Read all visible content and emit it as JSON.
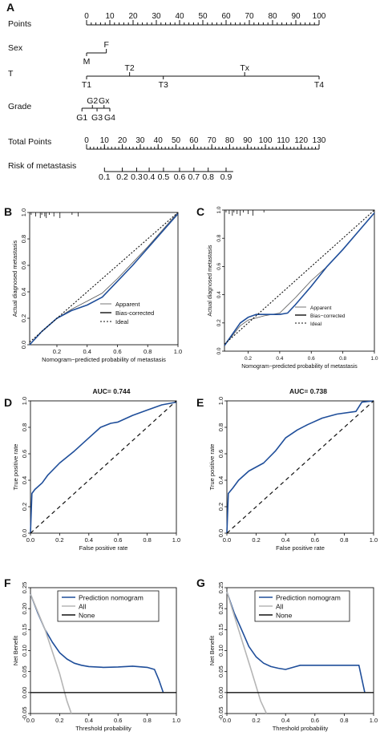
{
  "nomogram": {
    "panel_letter": "A",
    "rows": [
      {
        "id": "points",
        "label": "Points",
        "type": "axis",
        "ticks": [
          0,
          10,
          20,
          30,
          40,
          50,
          60,
          70,
          80,
          90,
          100
        ],
        "minor_step": 2
      },
      {
        "id": "sex",
        "label": "Sex",
        "type": "categories",
        "items": [
          {
            "name": "M",
            "value": 0,
            "side": "below"
          },
          {
            "name": "F",
            "value": 8.5,
            "side": "above"
          }
        ]
      },
      {
        "id": "t",
        "label": "T",
        "type": "categories",
        "items": [
          {
            "name": "T1",
            "value": 0,
            "side": "below"
          },
          {
            "name": "T2",
            "value": 18.5,
            "side": "above"
          },
          {
            "name": "T3",
            "value": 33,
            "side": "below"
          },
          {
            "name": "Tx",
            "value": 68,
            "side": "above"
          },
          {
            "name": "T4",
            "value": 100,
            "side": "below"
          }
        ]
      },
      {
        "id": "grade",
        "label": "Grade",
        "type": "grade",
        "above": [
          {
            "name": "G2",
            "value": 2.5
          },
          {
            "name": "Gx",
            "value": 7.5
          }
        ],
        "below": [
          {
            "name": "G1",
            "value": -2
          },
          {
            "name": "G3",
            "value": 4.5
          },
          {
            "name": "G4",
            "value": 10
          }
        ]
      },
      {
        "id": "total_points",
        "label": "Total Points",
        "type": "axis",
        "ticks": [
          0,
          10,
          20,
          30,
          40,
          50,
          60,
          70,
          80,
          90,
          100,
          110,
          120,
          130
        ],
        "minor_step": 2
      },
      {
        "id": "risk",
        "label": "Risk of metastasis",
        "type": "risk",
        "ticks": [
          {
            "label": "0.1",
            "total": 10
          },
          {
            "label": "0.2",
            "total": 20
          },
          {
            "label": "0.3",
            "total": 28
          },
          {
            "label": "0.4",
            "total": 35
          },
          {
            "label": "0.5",
            "total": 43
          },
          {
            "label": "0.6",
            "total": 52
          },
          {
            "label": "0.7",
            "total": 60
          },
          {
            "label": "0.8",
            "total": 68
          },
          {
            "label": "0.9",
            "total": 78
          }
        ],
        "extent": [
          10,
          82
        ]
      }
    ]
  },
  "chart_data": [
    {
      "panel": "B",
      "type": "line",
      "xlabel": "Nomogram−predicted probability of metastasis",
      "ylabel": "Actual diagnosed metastasis",
      "xlim": [
        0.02,
        1.0
      ],
      "ylim": [
        0.0,
        1.0
      ],
      "xticks": [
        "0.2",
        "0.4",
        "0.6",
        "0.8",
        "1.0"
      ],
      "xtick_values": [
        0.2,
        0.4,
        0.6,
        0.8,
        1.0
      ],
      "yticks": [
        "0.0",
        "0.2",
        "0.4",
        "0.6",
        "0.8",
        "1.0"
      ],
      "ytick_values": [
        0,
        0.2,
        0.4,
        0.6,
        0.8,
        1.0
      ],
      "legend": [
        "Apparent",
        "Bias-corrected",
        "Ideal"
      ],
      "legend_position": "bottom-right",
      "rug": [
        0.03,
        0.06,
        0.09,
        0.1,
        0.12,
        0.13,
        0.15,
        0.18,
        0.22,
        0.3,
        0.34
      ],
      "series": [
        {
          "name": "Apparent",
          "style": "thin-solid",
          "points": [
            [
              0.02,
              0.0
            ],
            [
              0.1,
              0.1
            ],
            [
              0.2,
              0.2
            ],
            [
              0.3,
              0.27
            ],
            [
              0.4,
              0.33
            ],
            [
              0.5,
              0.39
            ],
            [
              0.6,
              0.5
            ],
            [
              0.7,
              0.62
            ],
            [
              0.8,
              0.74
            ],
            [
              0.9,
              0.87
            ],
            [
              1.0,
              1.0
            ]
          ]
        },
        {
          "name": "Bias-corrected",
          "style": "thick-solid",
          "points": [
            [
              0.02,
              0.0
            ],
            [
              0.1,
              0.1
            ],
            [
              0.2,
              0.2
            ],
            [
              0.3,
              0.26
            ],
            [
              0.4,
              0.3
            ],
            [
              0.5,
              0.36
            ],
            [
              0.6,
              0.48
            ],
            [
              0.7,
              0.6
            ],
            [
              0.8,
              0.73
            ],
            [
              0.9,
              0.86
            ],
            [
              1.0,
              0.99
            ]
          ]
        },
        {
          "name": "Ideal",
          "style": "dotted",
          "points": [
            [
              0.02,
              0.02
            ],
            [
              1.0,
              1.0
            ]
          ]
        }
      ]
    },
    {
      "panel": "C",
      "type": "line",
      "xlabel": "Nomogram−predicted probability of metastasis",
      "ylabel": "Actual diagnosed metastasis",
      "xlim": [
        0.05,
        1.0
      ],
      "ylim": [
        0.0,
        1.0
      ],
      "xticks": [
        "0.2",
        "0.4",
        "0.6",
        "0.8",
        "1.0"
      ],
      "xtick_values": [
        0.2,
        0.4,
        0.6,
        0.8,
        1.0
      ],
      "yticks": [
        "0.0",
        "0.2",
        "0.4",
        "0.6",
        "0.8",
        "1.0"
      ],
      "ytick_values": [
        0,
        0.2,
        0.4,
        0.6,
        0.8,
        1.0
      ],
      "legend": [
        "Apparent",
        "Bias−corrected",
        "Ideal"
      ],
      "legend_position": "bottom-right",
      "rug": [
        0.06,
        0.08,
        0.1,
        0.11,
        0.13,
        0.15,
        0.17,
        0.2,
        0.23,
        0.3
      ],
      "series": [
        {
          "name": "Apparent",
          "style": "thin-solid",
          "points": [
            [
              0.05,
              0.04
            ],
            [
              0.15,
              0.18
            ],
            [
              0.2,
              0.22
            ],
            [
              0.3,
              0.25
            ],
            [
              0.4,
              0.27
            ],
            [
              0.5,
              0.38
            ],
            [
              0.6,
              0.5
            ],
            [
              0.7,
              0.6
            ],
            [
              0.8,
              0.72
            ],
            [
              0.9,
              0.85
            ],
            [
              1.0,
              0.98
            ]
          ]
        },
        {
          "name": "Bias−corrected",
          "style": "thick-solid",
          "points": [
            [
              0.05,
              0.04
            ],
            [
              0.15,
              0.2
            ],
            [
              0.2,
              0.24
            ],
            [
              0.25,
              0.26
            ],
            [
              0.3,
              0.26
            ],
            [
              0.4,
              0.26
            ],
            [
              0.45,
              0.27
            ],
            [
              0.5,
              0.33
            ],
            [
              0.6,
              0.46
            ],
            [
              0.7,
              0.6
            ],
            [
              0.8,
              0.72
            ],
            [
              0.9,
              0.85
            ],
            [
              1.0,
              0.98
            ]
          ]
        },
        {
          "name": "Ideal",
          "style": "dotted",
          "points": [
            [
              0.05,
              0.05
            ],
            [
              1.0,
              1.0
            ]
          ]
        }
      ]
    },
    {
      "panel": "D",
      "type": "line",
      "title": "AUC= 0.744",
      "xlabel": "False positive rate",
      "ylabel": "True positive rate",
      "xlim": [
        0,
        1
      ],
      "ylim": [
        0,
        1
      ],
      "xticks": [
        "0.0",
        "0.2",
        "0.4",
        "0.6",
        "0.8",
        "1.0"
      ],
      "xtick_values": [
        0,
        0.2,
        0.4,
        0.6,
        0.8,
        1.0
      ],
      "yticks": [
        "0.0",
        "0.2",
        "0.4",
        "0.6",
        "0.8",
        "1.0"
      ],
      "ytick_values": [
        0,
        0.2,
        0.4,
        0.6,
        0.8,
        1.0
      ],
      "series": [
        {
          "name": "ROC",
          "style": "roc",
          "points": [
            [
              0,
              0
            ],
            [
              0.01,
              0.3
            ],
            [
              0.03,
              0.33
            ],
            [
              0.08,
              0.38
            ],
            [
              0.12,
              0.44
            ],
            [
              0.2,
              0.53
            ],
            [
              0.3,
              0.62
            ],
            [
              0.4,
              0.72
            ],
            [
              0.48,
              0.8
            ],
            [
              0.55,
              0.83
            ],
            [
              0.6,
              0.84
            ],
            [
              0.7,
              0.89
            ],
            [
              0.8,
              0.93
            ],
            [
              0.9,
              0.97
            ],
            [
              1.0,
              0.99
            ]
          ]
        },
        {
          "name": "Reference",
          "style": "dashed",
          "points": [
            [
              0,
              0
            ],
            [
              1,
              1
            ]
          ]
        }
      ]
    },
    {
      "panel": "E",
      "type": "line",
      "title": "AUC= 0.738",
      "xlabel": "False positive rate",
      "ylabel": "True positive rate",
      "xlim": [
        0,
        1
      ],
      "ylim": [
        0,
        1
      ],
      "xticks": [
        "0.0",
        "0.2",
        "0.4",
        "0.6",
        "0.8",
        "1.0"
      ],
      "xtick_values": [
        0,
        0.2,
        0.4,
        0.6,
        0.8,
        1.0
      ],
      "yticks": [
        "0.0",
        "0.2",
        "0.4",
        "0.6",
        "0.8",
        "1.0"
      ],
      "ytick_values": [
        0,
        0.2,
        0.4,
        0.6,
        0.8,
        1.0
      ],
      "series": [
        {
          "name": "ROC",
          "style": "roc",
          "points": [
            [
              0,
              0
            ],
            [
              0.01,
              0.3
            ],
            [
              0.04,
              0.34
            ],
            [
              0.08,
              0.4
            ],
            [
              0.15,
              0.47
            ],
            [
              0.25,
              0.53
            ],
            [
              0.33,
              0.62
            ],
            [
              0.4,
              0.72
            ],
            [
              0.48,
              0.78
            ],
            [
              0.55,
              0.82
            ],
            [
              0.65,
              0.87
            ],
            [
              0.75,
              0.9
            ],
            [
              0.88,
              0.92
            ],
            [
              0.92,
              0.99
            ],
            [
              1.0,
              1.0
            ]
          ]
        },
        {
          "name": "Reference",
          "style": "dashed",
          "points": [
            [
              0,
              0
            ],
            [
              1,
              1
            ]
          ]
        }
      ]
    },
    {
      "panel": "F",
      "type": "line",
      "xlabel": "Threshold probability",
      "ylabel": "Net Benefit",
      "xlim": [
        0,
        1
      ],
      "ylim": [
        -0.05,
        0.25
      ],
      "xticks": [
        "0.0",
        "0.2",
        "0.4",
        "0.6",
        "0.8",
        "1.0"
      ],
      "xtick_values": [
        0,
        0.2,
        0.4,
        0.6,
        0.8,
        1.0
      ],
      "yticks": [
        "-0.05",
        "0.00",
        "0.05",
        "0.10",
        "0.15",
        "0.20",
        "0.25"
      ],
      "ytick_values": [
        -0.05,
        0,
        0.05,
        0.1,
        0.15,
        0.2,
        0.25
      ],
      "legend": [
        "Prediction nomogram",
        "All",
        "None"
      ],
      "legend_position": "top-center",
      "series": [
        {
          "name": "Prediction nomogram",
          "style": "model",
          "points": [
            [
              0,
              0.235
            ],
            [
              0.05,
              0.19
            ],
            [
              0.1,
              0.15
            ],
            [
              0.15,
              0.12
            ],
            [
              0.2,
              0.095
            ],
            [
              0.25,
              0.08
            ],
            [
              0.3,
              0.07
            ],
            [
              0.35,
              0.065
            ],
            [
              0.4,
              0.062
            ],
            [
              0.5,
              0.06
            ],
            [
              0.6,
              0.061
            ],
            [
              0.7,
              0.063
            ],
            [
              0.8,
              0.06
            ],
            [
              0.85,
              0.055
            ],
            [
              0.88,
              0.03
            ],
            [
              0.91,
              0.0
            ]
          ]
        },
        {
          "name": "All",
          "style": "all",
          "points": [
            [
              0,
              0.235
            ],
            [
              0.1,
              0.15
            ],
            [
              0.2,
              0.045
            ],
            [
              0.25,
              -0.02
            ],
            [
              0.28,
              -0.05
            ]
          ]
        },
        {
          "name": "None",
          "style": "none",
          "points": [
            [
              0,
              0
            ],
            [
              1,
              0
            ]
          ]
        }
      ]
    },
    {
      "panel": "G",
      "type": "line",
      "xlabel": "Threshold probability",
      "ylabel": "Net Benefit",
      "xlim": [
        0,
        1
      ],
      "ylim": [
        -0.05,
        0.25
      ],
      "xticks": [
        "0.0",
        "0.2",
        "0.4",
        "0.6",
        "0.8",
        "1.0"
      ],
      "xtick_values": [
        0,
        0.2,
        0.4,
        0.6,
        0.8,
        1.0
      ],
      "yticks": [
        "-0.05",
        "0.00",
        "0.05",
        "0.10",
        "0.15",
        "0.20",
        "0.25"
      ],
      "ytick_values": [
        -0.05,
        0,
        0.05,
        0.1,
        0.15,
        0.2,
        0.25
      ],
      "legend": [
        "Prediction nomogram",
        "All",
        "None"
      ],
      "legend_position": "top-right",
      "series": [
        {
          "name": "Prediction nomogram",
          "style": "model",
          "points": [
            [
              0,
              0.24
            ],
            [
              0.05,
              0.19
            ],
            [
              0.1,
              0.15
            ],
            [
              0.15,
              0.11
            ],
            [
              0.2,
              0.085
            ],
            [
              0.25,
              0.07
            ],
            [
              0.3,
              0.062
            ],
            [
              0.35,
              0.058
            ],
            [
              0.4,
              0.055
            ],
            [
              0.45,
              0.06
            ],
            [
              0.5,
              0.065
            ],
            [
              0.6,
              0.065
            ],
            [
              0.7,
              0.065
            ],
            [
              0.8,
              0.065
            ],
            [
              0.9,
              0.065
            ],
            [
              0.94,
              0.0
            ]
          ]
        },
        {
          "name": "All",
          "style": "all",
          "points": [
            [
              0,
              0.24
            ],
            [
              0.08,
              0.15
            ],
            [
              0.16,
              0.06
            ],
            [
              0.23,
              -0.02
            ],
            [
              0.27,
              -0.05
            ]
          ]
        },
        {
          "name": "None",
          "style": "none",
          "points": [
            [
              0,
              0
            ],
            [
              1,
              0
            ]
          ]
        }
      ]
    }
  ],
  "colors": {
    "blue": "#1f4e9a",
    "gray": "#b5b5b5",
    "black": "#111111"
  }
}
